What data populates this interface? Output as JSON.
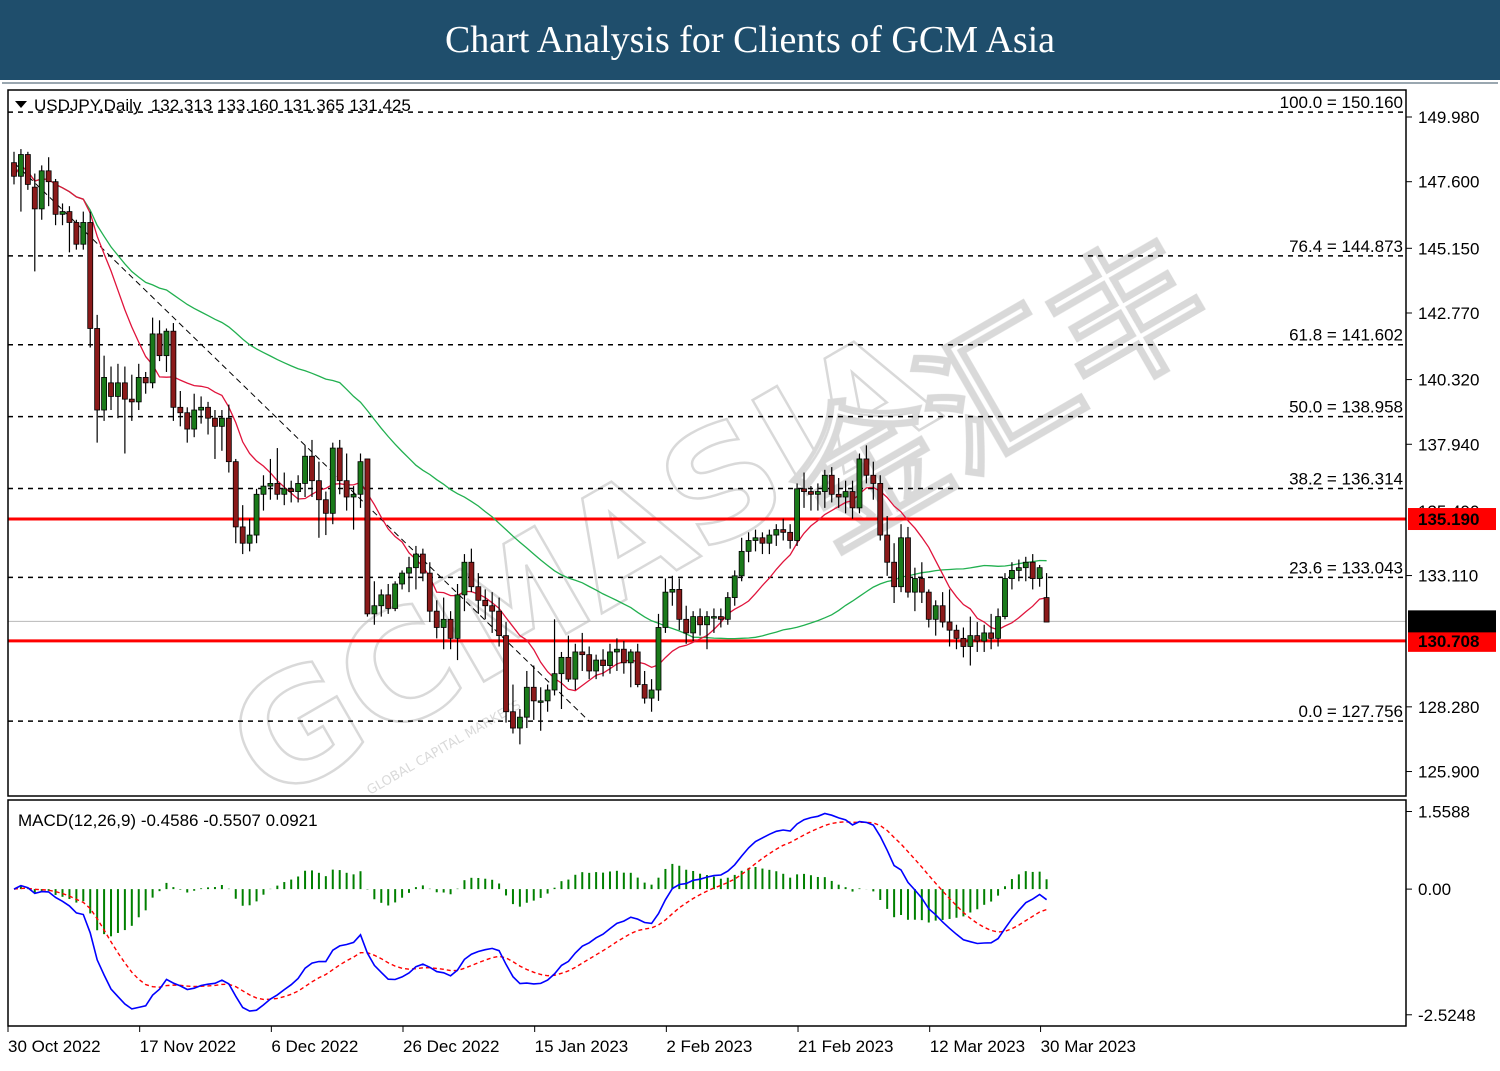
{
  "header": {
    "title": "Chart Analysis for Clients of GCM Asia"
  },
  "watermark": {
    "text": "GCMASIA",
    "chinese": "金汇丰",
    "sub": "GLOBAL CAPITAL MARKETS"
  },
  "chart_data": {
    "type": "candlestick",
    "title": "USDJPY,Daily  132.313 133.160 131.365 131.425",
    "symbol": "USDJPY",
    "timeframe": "Daily",
    "ohlc_readout": {
      "open": 132.313,
      "high": 133.16,
      "low": 131.365,
      "close": 131.425
    },
    "current_price": "131.425",
    "ylim": [
      125.0,
      150.9
    ],
    "y_ticks": [
      "149.980",
      "147.600",
      "145.150",
      "142.770",
      "140.320",
      "137.940",
      "133.110",
      "128.280",
      "125.900"
    ],
    "hidden_tick": "135.490",
    "x_labels": [
      "30 Oct 2022",
      "17 Nov 2022",
      "6 Dec 2022",
      "26 Dec 2022",
      "15 Jan 2023",
      "2 Feb 2023",
      "21 Feb 2023",
      "12 Mar 2023",
      "30 Mar 2023"
    ],
    "fib_levels": [
      {
        "label": "100.0 = 150.160",
        "value": 150.16
      },
      {
        "label": "76.4 = 144.873",
        "value": 144.873
      },
      {
        "label": "61.8 = 141.602",
        "value": 141.602
      },
      {
        "label": "50.0 = 138.958",
        "value": 138.958
      },
      {
        "label": "38.2 = 136.314",
        "value": 136.314
      },
      {
        "label": "23.6 = 133.043",
        "value": 133.043
      },
      {
        "label": "0.0 = 127.756",
        "value": 127.756
      }
    ],
    "sr_levels": [
      {
        "label": "135.190",
        "value": 135.19,
        "color": "#ff0000"
      },
      {
        "label": "130.708",
        "value": 130.708,
        "color": "#ff0000"
      }
    ],
    "candles_ohlc": [
      [
        148.3,
        148.7,
        147.5,
        147.8
      ],
      [
        147.8,
        148.8,
        146.5,
        148.6
      ],
      [
        148.6,
        148.7,
        147.3,
        147.5
      ],
      [
        147.4,
        147.9,
        144.3,
        146.6
      ],
      [
        146.6,
        148.2,
        146.2,
        148.0
      ],
      [
        148.0,
        148.5,
        146.7,
        147.6
      ],
      [
        147.6,
        147.7,
        146.0,
        146.4
      ],
      [
        146.4,
        146.8,
        146.0,
        146.5
      ],
      [
        146.5,
        146.7,
        145.0,
        146.1
      ],
      [
        146.1,
        146.2,
        145.1,
        145.3
      ],
      [
        145.3,
        146.5,
        145.1,
        146.1
      ],
      [
        146.1,
        146.5,
        141.5,
        142.2
      ],
      [
        142.2,
        142.7,
        138.0,
        139.2
      ],
      [
        139.2,
        141.2,
        138.8,
        140.4
      ],
      [
        140.2,
        140.8,
        139.2,
        139.7
      ],
      [
        139.7,
        140.9,
        138.9,
        140.2
      ],
      [
        140.2,
        140.8,
        137.6,
        139.6
      ],
      [
        139.6,
        140.5,
        138.8,
        139.5
      ],
      [
        139.5,
        140.9,
        139.2,
        140.4
      ],
      [
        140.4,
        140.6,
        139.8,
        140.2
      ],
      [
        140.2,
        142.6,
        140.0,
        142.0
      ],
      [
        142.0,
        142.5,
        141.0,
        141.2
      ],
      [
        141.2,
        142.2,
        140.6,
        142.1
      ],
      [
        142.1,
        142.4,
        138.8,
        139.3
      ],
      [
        139.3,
        139.9,
        138.6,
        139.1
      ],
      [
        139.1,
        139.3,
        138.0,
        138.5
      ],
      [
        138.5,
        139.8,
        138.2,
        139.2
      ],
      [
        139.2,
        139.7,
        138.7,
        139.3
      ],
      [
        139.3,
        139.5,
        138.3,
        138.9
      ],
      [
        138.9,
        139.2,
        137.4,
        138.6
      ],
      [
        138.6,
        139.2,
        137.7,
        138.9
      ],
      [
        138.9,
        139.4,
        136.9,
        137.3
      ],
      [
        137.3,
        137.4,
        134.3,
        134.9
      ],
      [
        134.9,
        135.7,
        133.9,
        134.3
      ],
      [
        134.3,
        135.2,
        134.0,
        134.6
      ],
      [
        134.6,
        136.3,
        134.3,
        136.1
      ],
      [
        136.1,
        136.8,
        135.5,
        136.4
      ],
      [
        136.4,
        137.4,
        135.9,
        136.5
      ],
      [
        136.5,
        137.8,
        135.9,
        136.1
      ],
      [
        136.1,
        136.9,
        135.7,
        136.3
      ],
      [
        136.3,
        136.6,
        135.8,
        136.2
      ],
      [
        136.2,
        136.8,
        135.8,
        136.5
      ],
      [
        136.5,
        137.9,
        136.0,
        137.5
      ],
      [
        137.5,
        138.1,
        136.0,
        136.6
      ],
      [
        136.6,
        137.3,
        134.5,
        135.9
      ],
      [
        135.9,
        136.2,
        134.6,
        135.4
      ],
      [
        135.4,
        138.0,
        135.0,
        137.8
      ],
      [
        137.8,
        138.1,
        136.1,
        136.6
      ],
      [
        136.6,
        137.6,
        135.5,
        136.0
      ],
      [
        136.0,
        136.4,
        134.8,
        136.1
      ],
      [
        136.1,
        137.6,
        135.6,
        137.3
      ],
      [
        137.4,
        137.4,
        131.6,
        131.7
      ],
      [
        131.7,
        132.9,
        131.3,
        132.0
      ],
      [
        132.0,
        132.6,
        131.6,
        132.4
      ],
      [
        132.4,
        132.8,
        131.7,
        131.9
      ],
      [
        131.9,
        132.9,
        131.8,
        132.8
      ],
      [
        132.8,
        133.3,
        132.6,
        133.2
      ],
      [
        133.2,
        133.8,
        132.5,
        133.4
      ],
      [
        133.4,
        134.2,
        132.6,
        133.9
      ],
      [
        133.9,
        134.1,
        132.9,
        133.2
      ],
      [
        133.2,
        133.6,
        131.4,
        131.8
      ],
      [
        131.8,
        132.2,
        130.8,
        131.2
      ],
      [
        131.2,
        132.3,
        130.4,
        131.5
      ],
      [
        131.5,
        131.8,
        130.4,
        130.8
      ],
      [
        130.8,
        132.8,
        130.0,
        132.4
      ],
      [
        132.4,
        133.9,
        131.8,
        133.6
      ],
      [
        133.6,
        134.1,
        132.5,
        132.7
      ],
      [
        132.7,
        133.2,
        131.7,
        132.2
      ],
      [
        132.2,
        132.6,
        131.5,
        132.0
      ],
      [
        132.0,
        132.5,
        131.0,
        131.8
      ],
      [
        131.8,
        132.3,
        130.5,
        130.9
      ],
      [
        130.9,
        131.4,
        127.7,
        128.1
      ],
      [
        128.1,
        129.1,
        127.3,
        127.5
      ],
      [
        127.5,
        128.2,
        126.9,
        127.9
      ],
      [
        127.9,
        129.6,
        127.5,
        129.0
      ],
      [
        129.0,
        129.8,
        127.8,
        128.5
      ],
      [
        128.5,
        129.0,
        127.4,
        128.5
      ],
      [
        128.5,
        129.1,
        128.1,
        128.9
      ],
      [
        128.9,
        131.5,
        128.7,
        129.5
      ],
      [
        129.5,
        130.3,
        128.2,
        130.1
      ],
      [
        130.1,
        130.9,
        129.2,
        129.3
      ],
      [
        129.3,
        130.6,
        128.9,
        130.3
      ],
      [
        130.3,
        131.0,
        129.6,
        130.2
      ],
      [
        130.2,
        130.5,
        129.3,
        129.6
      ],
      [
        129.6,
        130.2,
        129.3,
        130.0
      ],
      [
        130.0,
        130.4,
        129.4,
        129.8
      ],
      [
        129.8,
        130.6,
        129.5,
        130.3
      ],
      [
        130.3,
        130.8,
        129.6,
        130.4
      ],
      [
        130.4,
        130.7,
        129.5,
        129.9
      ],
      [
        129.9,
        130.4,
        129.0,
        130.3
      ],
      [
        130.3,
        130.6,
        129.0,
        129.1
      ],
      [
        129.1,
        129.6,
        128.4,
        128.6
      ],
      [
        128.6,
        129.3,
        128.1,
        128.9
      ],
      [
        128.9,
        131.7,
        128.5,
        131.2
      ],
      [
        131.2,
        133.0,
        131.0,
        132.5
      ],
      [
        132.5,
        133.1,
        132.0,
        132.6
      ],
      [
        132.6,
        133.0,
        131.1,
        131.5
      ],
      [
        131.5,
        132.0,
        130.6,
        131.0
      ],
      [
        131.0,
        131.8,
        130.7,
        131.6
      ],
      [
        131.6,
        131.9,
        130.9,
        131.3
      ],
      [
        131.3,
        131.8,
        130.4,
        131.6
      ],
      [
        131.6,
        131.9,
        131.0,
        131.6
      ],
      [
        131.6,
        131.9,
        131.2,
        131.5
      ],
      [
        131.5,
        132.5,
        131.3,
        132.3
      ],
      [
        132.3,
        133.3,
        132.0,
        133.1
      ],
      [
        133.1,
        134.5,
        132.9,
        134.0
      ],
      [
        134.0,
        134.7,
        133.6,
        134.4
      ],
      [
        134.4,
        134.8,
        134.0,
        134.5
      ],
      [
        134.5,
        134.7,
        133.9,
        134.3
      ],
      [
        134.3,
        134.8,
        133.9,
        134.6
      ],
      [
        134.6,
        135.0,
        134.2,
        134.8
      ],
      [
        134.8,
        135.2,
        134.4,
        134.7
      ],
      [
        134.7,
        135.0,
        134.1,
        134.4
      ],
      [
        134.4,
        136.5,
        134.2,
        136.3
      ],
      [
        136.3,
        136.9,
        135.6,
        136.2
      ],
      [
        136.2,
        136.4,
        135.5,
        136.1
      ],
      [
        136.1,
        136.5,
        135.5,
        136.2
      ],
      [
        136.2,
        137.0,
        135.6,
        136.8
      ],
      [
        136.8,
        137.1,
        135.8,
        136.1
      ],
      [
        136.1,
        136.7,
        135.6,
        136.0
      ],
      [
        136.0,
        136.6,
        135.4,
        136.2
      ],
      [
        136.2,
        136.6,
        135.2,
        135.6
      ],
      [
        135.6,
        137.6,
        135.4,
        137.4
      ],
      [
        137.4,
        137.9,
        136.5,
        136.8
      ],
      [
        136.8,
        137.3,
        135.9,
        136.5
      ],
      [
        136.5,
        136.8,
        134.4,
        134.6
      ],
      [
        134.6,
        135.3,
        133.1,
        133.6
      ],
      [
        133.6,
        134.3,
        132.1,
        132.7
      ],
      [
        132.7,
        135.0,
        132.5,
        134.5
      ],
      [
        134.5,
        134.9,
        132.3,
        132.5
      ],
      [
        132.5,
        133.4,
        131.8,
        133.0
      ],
      [
        133.0,
        133.6,
        132.1,
        132.5
      ],
      [
        132.5,
        132.6,
        131.2,
        131.5
      ],
      [
        131.5,
        132.2,
        130.9,
        132.0
      ],
      [
        132.0,
        132.5,
        131.2,
        131.4
      ],
      [
        131.4,
        132.6,
        130.5,
        131.1
      ],
      [
        131.1,
        131.3,
        130.4,
        130.8
      ],
      [
        130.8,
        131.2,
        130.1,
        130.5
      ],
      [
        130.5,
        131.6,
        129.8,
        130.9
      ],
      [
        130.9,
        131.4,
        130.3,
        130.7
      ],
      [
        130.7,
        131.3,
        130.3,
        131.0
      ],
      [
        131.0,
        131.7,
        130.4,
        130.8
      ],
      [
        130.8,
        131.9,
        130.5,
        131.6
      ],
      [
        131.6,
        133.2,
        131.5,
        133.0
      ],
      [
        133.0,
        133.6,
        132.6,
        133.3
      ],
      [
        133.3,
        133.7,
        132.9,
        133.4
      ],
      [
        133.4,
        133.8,
        132.9,
        133.6
      ],
      [
        133.6,
        133.9,
        132.6,
        133.0
      ],
      [
        133.0,
        133.5,
        132.7,
        133.4
      ],
      [
        132.3,
        133.2,
        131.4,
        131.4
      ]
    ],
    "ma_fast_color": "#e0143c",
    "ma_slow_color": "#22b050",
    "macd": {
      "title": "MACD(12,26,9) -0.4586 -0.5507 0.0921",
      "values": {
        "macd": -0.4586,
        "signal": -0.5507,
        "histogram": 0.0921
      },
      "ylim": [
        -2.75,
        1.75
      ],
      "y_ticks": [
        "1.5588",
        "0.00",
        "-2.5248"
      ],
      "macd_color": "#0000ff",
      "signal_color": "#ff0000",
      "hist_color": "#008000"
    }
  }
}
